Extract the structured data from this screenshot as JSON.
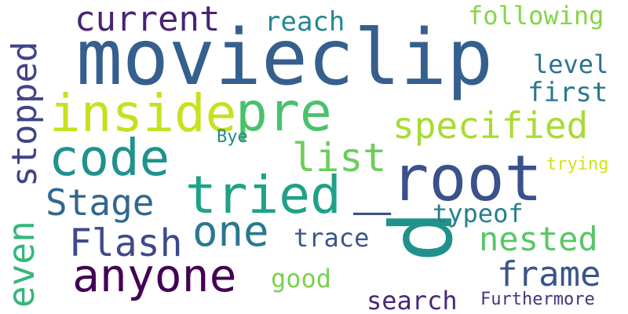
{
  "background": "#ffffff",
  "words": [
    {
      "text": "movieclip",
      "color": "#355f8d"
    },
    {
      "text": "_root",
      "color": "#3b518b"
    },
    {
      "text": "p",
      "color": "#21918c"
    },
    {
      "text": "inside",
      "color": "#c8e020"
    },
    {
      "text": "pre",
      "color": "#4ac16d"
    },
    {
      "text": "tried",
      "color": "#1fa188"
    },
    {
      "text": "code",
      "color": "#20928c"
    },
    {
      "text": "one",
      "color": "#2a788e"
    },
    {
      "text": "anyone",
      "color": "#440154"
    },
    {
      "text": "current",
      "color": "#482374"
    },
    {
      "text": "specified",
      "color": "#a8db34"
    },
    {
      "text": "stopped",
      "color": "#414487"
    },
    {
      "text": "even",
      "color": "#35b779"
    },
    {
      "text": "list",
      "color": "#6ccd5a"
    },
    {
      "text": "Stage",
      "color": "#31688e"
    },
    {
      "text": "Flash",
      "color": "#3e4989"
    },
    {
      "text": "nested",
      "color": "#58c765"
    },
    {
      "text": "frame",
      "color": "#3a548c"
    },
    {
      "text": "reach",
      "color": "#23888e"
    },
    {
      "text": "following",
      "color": "#86d549"
    },
    {
      "text": "level",
      "color": "#2c728e"
    },
    {
      "text": "first",
      "color": "#2a788e"
    },
    {
      "text": "typeof",
      "color": "#277f8e"
    },
    {
      "text": "trace",
      "color": "#39568c"
    },
    {
      "text": "search",
      "color": "#482878"
    },
    {
      "text": "good",
      "color": "#7ad151"
    },
    {
      "text": "Furthermore",
      "color": "#46337e"
    },
    {
      "text": "trying",
      "color": "#d2e21b"
    },
    {
      "text": "Bye",
      "color": "#238a8d"
    }
  ]
}
